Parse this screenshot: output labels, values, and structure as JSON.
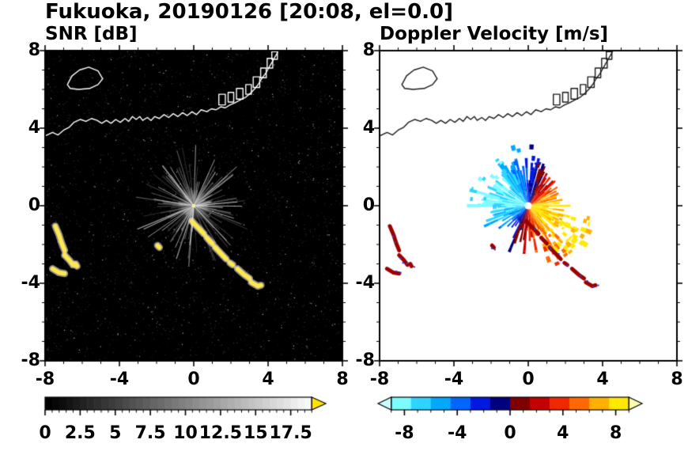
{
  "title": "Fukuoka, 20190126 [20:08, el=0.0]",
  "chart_data": [
    {
      "type": "heatmap",
      "title": "SNR [dB]",
      "xlim": [
        -8,
        8
      ],
      "ylim": [
        -8,
        8
      ],
      "xticks": [
        -8,
        -4,
        0,
        4,
        8
      ],
      "yticks": [
        8,
        4,
        0,
        -4,
        -8
      ],
      "minor_tick_step": 1,
      "background_color": "#000000",
      "colorbar": {
        "min": 0,
        "max": 20,
        "bar_max": 19,
        "major_ticks": [
          0,
          2.5,
          5,
          7.5,
          10,
          12.5,
          15,
          17.5
        ],
        "minor_tick_step": 0.5,
        "colormap": [
          "#000000",
          "#ffffff"
        ],
        "over_arrow_color": "#ffe400"
      },
      "radar": {
        "origin": [
          0,
          0
        ],
        "spoke_count": 135,
        "spoke_radius_range": [
          0.6,
          3.3
        ],
        "spoke_color": "gray",
        "description": "Gray radial ground-echo spokes centered on the radar at the origin over a black background with faint speckle noise."
      },
      "clutter_color": "#ffe84d",
      "clutter_description": "High-SNR yellow (above-scale) clutter arcs southwest near (-7,-2.5) and a chain running southeast from (0,-1) to (3.5,-4)."
    },
    {
      "type": "heatmap",
      "title": "Doppler Velocity [m/s]",
      "xlim": [
        -8,
        8
      ],
      "ylim": [
        -8,
        8
      ],
      "xticks": [
        -8,
        -4,
        0,
        4,
        8
      ],
      "yticks": [
        8,
        4,
        0,
        -4,
        -8
      ],
      "minor_tick_step": 1,
      "background_color": "#ffffff",
      "colorbar": {
        "min": -10,
        "max": 10,
        "bar_range": [
          -9,
          9
        ],
        "major_ticks": [
          -8,
          -4,
          0,
          4,
          8
        ],
        "minor_tick_step": 1,
        "colormap_stops": [
          "#7dfcff",
          "#2ed4ff",
          "#00a8ff",
          "#0066ff",
          "#0018e0",
          "#000080",
          "#800000",
          "#c40000",
          "#f02800",
          "#ff6a00",
          "#ffb000",
          "#ffe900"
        ],
        "under_arrow_color": "#c8feff",
        "over_arrow_color": "#fffbb0",
        "zero_boundary": "navy to dark red at 0 m/s"
      },
      "fan": {
        "direction_deg": -20,
        "max_speed": 9,
        "radius_range": [
          0.9,
          3.3
        ],
        "description": "Velocity fan around the radar: negative (cyan/blue) toward the north-northwest, positive (orange/yellow/red) toward the east-southeast; white dot at the origin."
      },
      "clutter_color": "#9c0000",
      "clutter_description": "Same clutter locations as the SNR panel, shown dark red with scattered blue specks."
    }
  ],
  "coastline": {
    "color_on_dark": "#ffffff",
    "color_on_light": "#1a1a1a",
    "main": [
      [
        -8.0,
        3.6
      ],
      [
        -7.6,
        3.78
      ],
      [
        -7.3,
        3.65
      ],
      [
        -7.0,
        3.9
      ],
      [
        -6.7,
        4.05
      ],
      [
        -6.45,
        4.3
      ],
      [
        -6.1,
        4.45
      ],
      [
        -5.8,
        4.35
      ],
      [
        -5.5,
        4.5
      ],
      [
        -5.2,
        4.4
      ],
      [
        -4.95,
        4.25
      ],
      [
        -4.7,
        4.4
      ],
      [
        -4.45,
        4.25
      ],
      [
        -4.2,
        4.45
      ],
      [
        -3.95,
        4.3
      ],
      [
        -3.7,
        4.5
      ],
      [
        -3.5,
        4.35
      ],
      [
        -3.3,
        4.6
      ],
      [
        -3.1,
        4.45
      ],
      [
        -2.9,
        4.6
      ],
      [
        -2.75,
        4.4
      ],
      [
        -2.5,
        4.55
      ],
      [
        -2.3,
        4.4
      ],
      [
        -2.1,
        4.6
      ],
      [
        -1.85,
        4.5
      ],
      [
        -1.6,
        4.7
      ],
      [
        -1.35,
        4.55
      ],
      [
        -1.1,
        4.75
      ],
      [
        -0.85,
        4.6
      ],
      [
        -0.6,
        4.8
      ],
      [
        -0.35,
        4.65
      ],
      [
        -0.1,
        4.85
      ],
      [
        0.15,
        4.7
      ],
      [
        0.4,
        4.95
      ],
      [
        0.7,
        4.85
      ],
      [
        0.95,
        5.0
      ],
      [
        1.2,
        4.95
      ],
      [
        1.45,
        5.1
      ],
      [
        1.7,
        5.05
      ],
      [
        1.95,
        5.2
      ],
      [
        2.2,
        5.3
      ],
      [
        2.5,
        5.45
      ],
      [
        2.8,
        5.6
      ],
      [
        3.05,
        5.8
      ],
      [
        3.3,
        6.05
      ],
      [
        3.5,
        6.3
      ],
      [
        3.65,
        6.55
      ],
      [
        3.85,
        6.8
      ],
      [
        4.0,
        7.05
      ],
      [
        4.15,
        7.3
      ],
      [
        4.3,
        7.55
      ],
      [
        4.45,
        7.8
      ],
      [
        4.55,
        8.0
      ]
    ],
    "island": [
      [
        -6.8,
        6.25
      ],
      [
        -6.55,
        6.7
      ],
      [
        -6.15,
        7.0
      ],
      [
        -5.65,
        7.15
      ],
      [
        -5.15,
        6.95
      ],
      [
        -4.9,
        6.55
      ],
      [
        -5.15,
        6.25
      ],
      [
        -5.6,
        6.05
      ],
      [
        -6.2,
        6.0
      ],
      [
        -6.65,
        6.05
      ]
    ],
    "piers": [
      [
        1.35,
        5.2,
        0.35,
        0.55
      ],
      [
        1.85,
        5.35,
        0.3,
        0.5
      ],
      [
        2.3,
        5.5,
        0.35,
        0.55
      ],
      [
        2.8,
        5.75,
        0.3,
        0.5
      ],
      [
        3.2,
        6.1,
        0.35,
        0.55
      ],
      [
        3.6,
        6.6,
        0.3,
        0.5
      ],
      [
        3.95,
        7.1,
        0.3,
        0.5
      ],
      [
        4.2,
        7.55,
        0.3,
        0.4
      ]
    ]
  },
  "clutter_tracks": [
    [
      [
        -7.45,
        -1.05
      ],
      [
        -7.25,
        -1.5
      ],
      [
        -7.1,
        -1.95
      ],
      [
        -6.95,
        -2.3
      ]
    ],
    [
      [
        -6.95,
        -2.55
      ],
      [
        -6.7,
        -2.8
      ],
      [
        -6.5,
        -3.05
      ]
    ],
    [
      [
        -7.6,
        -3.25
      ],
      [
        -7.25,
        -3.45
      ],
      [
        -6.95,
        -3.5
      ]
    ],
    [
      [
        -6.35,
        -3.0
      ],
      [
        -6.28,
        -3.12
      ]
    ],
    [
      [
        -0.1,
        -0.8
      ],
      [
        0.25,
        -1.15
      ],
      [
        0.55,
        -1.45
      ]
    ],
    [
      [
        0.7,
        -1.65
      ],
      [
        1.0,
        -1.95
      ]
    ],
    [
      [
        1.15,
        -2.15
      ],
      [
        1.5,
        -2.5
      ],
      [
        1.75,
        -2.75
      ]
    ],
    [
      [
        1.95,
        -2.95
      ],
      [
        2.1,
        -3.05
      ]
    ],
    [
      [
        2.35,
        -3.25
      ],
      [
        2.7,
        -3.55
      ],
      [
        3.0,
        -3.75
      ]
    ],
    [
      [
        3.1,
        -3.95
      ],
      [
        3.45,
        -4.15
      ],
      [
        3.62,
        -4.1
      ]
    ],
    [
      [
        -1.95,
        -2.05
      ],
      [
        -1.85,
        -2.15
      ]
    ]
  ]
}
